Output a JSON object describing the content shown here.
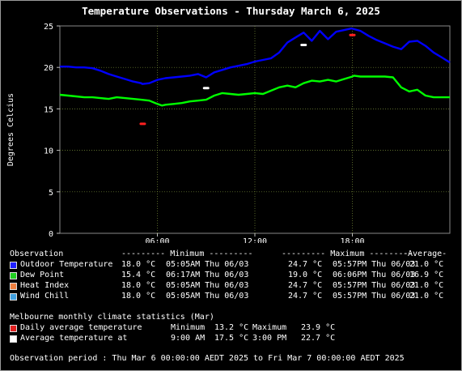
{
  "title": "Temperature Observations - Thursday March 6, 2025",
  "chart_data": {
    "type": "line",
    "ylabel": "Degrees Celcius",
    "xlim_hours": [
      0,
      24
    ],
    "ylim": [
      0,
      25
    ],
    "yticks": [
      0,
      5,
      10,
      15,
      20,
      25
    ],
    "xticks": [
      {
        "hour": 6,
        "label": "06:00"
      },
      {
        "hour": 12,
        "label": "12:00"
      },
      {
        "hour": 18,
        "label": "18:00"
      }
    ],
    "grid": true,
    "series": [
      {
        "name": "Outdoor Temperature",
        "color": "#0000ff",
        "x": [
          0,
          0.5,
          1,
          1.5,
          2,
          2.5,
          3,
          3.5,
          4,
          4.5,
          5,
          5.08,
          5.5,
          6,
          6.5,
          7,
          7.5,
          8,
          8.5,
          9,
          9.5,
          10,
          10.5,
          11,
          11.5,
          12,
          12.5,
          13,
          13.5,
          14,
          14.5,
          15,
          15.5,
          16,
          16.5,
          17,
          17.5,
          17.95,
          18.5,
          19,
          19.5,
          20,
          20.5,
          21,
          21.5,
          22,
          22.5,
          23,
          23.5,
          24
        ],
        "y": [
          20.1,
          20.1,
          20.0,
          20.0,
          19.9,
          19.6,
          19.2,
          18.9,
          18.6,
          18.3,
          18.1,
          18.0,
          18.1,
          18.5,
          18.7,
          18.8,
          18.9,
          19.0,
          19.2,
          18.8,
          19.4,
          19.7,
          20.0,
          20.2,
          20.4,
          20.7,
          20.9,
          21.1,
          21.8,
          23.0,
          23.6,
          24.2,
          23.2,
          24.4,
          23.4,
          24.3,
          24.5,
          24.7,
          24.4,
          23.8,
          23.3,
          22.9,
          22.5,
          22.2,
          23.1,
          23.2,
          22.6,
          21.8,
          21.2,
          20.6
        ]
      },
      {
        "name": "Dew Point",
        "color": "#00ff00",
        "x": [
          0,
          0.5,
          1,
          1.5,
          2,
          2.5,
          3,
          3.5,
          4,
          4.5,
          5,
          5.5,
          6,
          6.28,
          6.5,
          7,
          7.5,
          8,
          8.5,
          9,
          9.5,
          10,
          10.5,
          11,
          11.5,
          12,
          12.5,
          13,
          13.5,
          14,
          14.5,
          15,
          15.5,
          16,
          16.5,
          17,
          17.5,
          18,
          18.1,
          18.5,
          19,
          19.5,
          20,
          20.5,
          21,
          21.5,
          22,
          22.5,
          23,
          23.5,
          24
        ],
        "y": [
          16.7,
          16.6,
          16.5,
          16.4,
          16.4,
          16.3,
          16.2,
          16.4,
          16.3,
          16.2,
          16.1,
          16.0,
          15.6,
          15.4,
          15.5,
          15.6,
          15.7,
          15.9,
          16.0,
          16.1,
          16.6,
          16.9,
          16.8,
          16.7,
          16.8,
          16.9,
          16.8,
          17.2,
          17.6,
          17.8,
          17.6,
          18.1,
          18.4,
          18.3,
          18.5,
          18.3,
          18.6,
          18.9,
          19.0,
          18.9,
          18.9,
          18.9,
          18.9,
          18.8,
          17.6,
          17.1,
          17.3,
          16.6,
          16.4,
          16.4,
          16.4
        ]
      }
    ],
    "markers": [
      {
        "name": "Daily average temperature minimum",
        "color": "#ff2020",
        "x": 5.1,
        "y": 13.2
      },
      {
        "name": "Daily average temperature maximum",
        "color": "#ff2020",
        "x": 18.0,
        "y": 23.9
      },
      {
        "name": "Average temperature at 9:00 AM",
        "color": "#ffffff",
        "x": 9.0,
        "y": 17.5
      },
      {
        "name": "Average temperature at 3:00 PM",
        "color": "#ffffff",
        "x": 15.0,
        "y": 22.7
      }
    ]
  },
  "stats": {
    "header": {
      "col1": "Observation",
      "col2": "--------- Minimum ---------",
      "col3": "--------- Maximum ---------",
      "col4": "-Average-"
    },
    "rows": [
      {
        "label": "Outdoor Temperature",
        "color": "#2020ff",
        "min": "18.0 °C",
        "min_time": "05:05AM Thu 06/03",
        "max": "24.7 °C",
        "max_time": "05:57PM Thu 06/03",
        "avg": "21.0 °C"
      },
      {
        "label": "Dew Point",
        "color": "#20d020",
        "min": "15.4 °C",
        "min_time": "06:17AM Thu 06/03",
        "max": "19.0 °C",
        "max_time": "06:06PM Thu 06/03",
        "avg": "16.9 °C"
      },
      {
        "label": "Heat Index",
        "color": "#f08040",
        "min": "18.0 °C",
        "min_time": "05:05AM Thu 06/03",
        "max": "24.7 °C",
        "max_time": "05:57PM Thu 06/03",
        "avg": "21.0 °C"
      },
      {
        "label": "Wind Chill",
        "color": "#40a0e0",
        "min": "18.0 °C",
        "min_time": "05:05AM Thu 06/03",
        "max": "24.7 °C",
        "max_time": "05:57PM Thu 06/03",
        "avg": "21.0 °C"
      }
    ]
  },
  "climate": {
    "header": "Melbourne monthly climate statistics (Mar)",
    "rows": [
      {
        "label": "Daily average temperature",
        "color": "#e02020",
        "c1": "Minimum",
        "v1": "13.2 °C",
        "c2": "Maximum",
        "v2": "23.9 °C"
      },
      {
        "label": "Average temperature at",
        "color": "#ffffff",
        "c1": "9:00 AM",
        "v1": "17.5 °C",
        "c2": "3:00 PM",
        "v2": "22.7 °C"
      }
    ]
  },
  "period": "Observation period : Thu Mar 6 00:00:00 AEDT 2025 to Fri Mar 7 00:00:00 AEDT 2025"
}
